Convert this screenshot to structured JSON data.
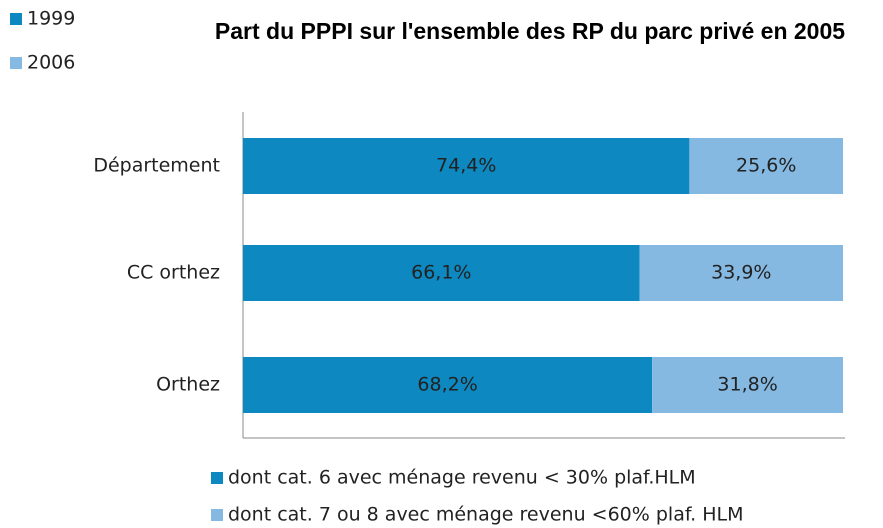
{
  "chart_data": {
    "type": "stacked_barh",
    "title": "Part du PPPI sur l'ensemble des RP du parc privé en 2005",
    "extra_legend": [
      {
        "name": "1999",
        "color": "#0d88c0"
      },
      {
        "name": "2006",
        "color": "#85b9e2"
      }
    ],
    "categories": [
      "Département",
      "CC orthez",
      "Orthez"
    ],
    "series": [
      {
        "name": "dont cat. 6 avec ménage revenu < 30% plaf.HLM",
        "color": "#0d88c0",
        "values": [
          74.4,
          66.1,
          68.2
        ],
        "value_labels": [
          "74,4%",
          "66,1%",
          "68,2%"
        ]
      },
      {
        "name": "dont cat. 7 ou 8 avec ménage revenu <60% plaf. HLM",
        "color": "#85b9e2",
        "values": [
          25.6,
          33.9,
          31.8
        ],
        "value_labels": [
          "25,6%",
          "33,9%",
          "31,8%"
        ]
      }
    ],
    "xlim": [
      0,
      100
    ]
  }
}
